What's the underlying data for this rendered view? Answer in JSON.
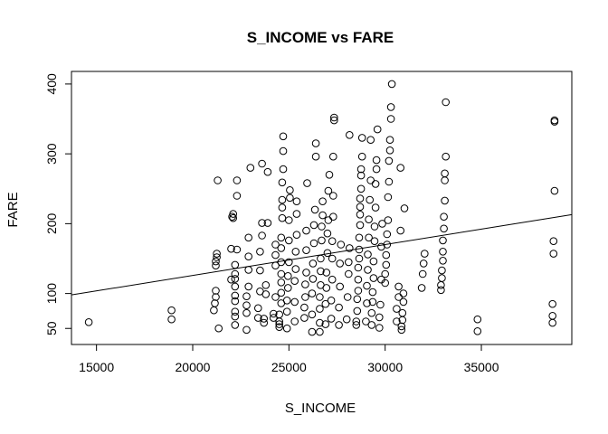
{
  "chart_data": {
    "type": "scatter",
    "title": "S_INCOME vs FARE",
    "xlabel": "S_INCOME",
    "ylabel": "FARE",
    "xlim": [
      13700,
      39700
    ],
    "ylim": [
      27,
      418
    ],
    "x_ticks": [
      15000,
      20000,
      25000,
      30000,
      35000
    ],
    "y_ticks": [
      50,
      100,
      200,
      300,
      400
    ],
    "grid": false,
    "regression_line": {
      "x": [
        13700,
        39700
      ],
      "y": [
        98,
        213
      ]
    },
    "point_style": "open-circle",
    "points": [
      [
        14600,
        59
      ],
      [
        18900,
        63
      ],
      [
        18900,
        76
      ],
      [
        21100,
        76
      ],
      [
        21150,
        86
      ],
      [
        21200,
        95
      ],
      [
        21200,
        104
      ],
      [
        21200,
        140
      ],
      [
        21200,
        146
      ],
      [
        21250,
        152
      ],
      [
        21250,
        157
      ],
      [
        21300,
        262
      ],
      [
        21350,
        50
      ],
      [
        22000,
        120
      ],
      [
        22000,
        164
      ],
      [
        22050,
        210
      ],
      [
        22100,
        214
      ],
      [
        22100,
        208
      ],
      [
        22200,
        55
      ],
      [
        22200,
        67
      ],
      [
        22200,
        74
      ],
      [
        22200,
        89
      ],
      [
        22200,
        97
      ],
      [
        22200,
        110
      ],
      [
        22200,
        121
      ],
      [
        22200,
        128
      ],
      [
        22200,
        141
      ],
      [
        22300,
        163
      ],
      [
        22300,
        240
      ],
      [
        22300,
        262
      ],
      [
        22800,
        48
      ],
      [
        22800,
        72
      ],
      [
        22800,
        83
      ],
      [
        22800,
        96
      ],
      [
        22900,
        110
      ],
      [
        22900,
        134
      ],
      [
        22900,
        153
      ],
      [
        22900,
        180
      ],
      [
        23000,
        280
      ],
      [
        23400,
        65
      ],
      [
        23400,
        79
      ],
      [
        23500,
        103
      ],
      [
        23500,
        133
      ],
      [
        23500,
        160
      ],
      [
        23600,
        183
      ],
      [
        23600,
        201
      ],
      [
        23600,
        286
      ],
      [
        23700,
        58
      ],
      [
        23700,
        64
      ],
      [
        23800,
        99
      ],
      [
        23800,
        112
      ],
      [
        23900,
        201
      ],
      [
        23900,
        274
      ],
      [
        24200,
        65
      ],
      [
        24200,
        71
      ],
      [
        24300,
        95
      ],
      [
        24300,
        140
      ],
      [
        24300,
        155
      ],
      [
        24300,
        170
      ],
      [
        24500,
        52
      ],
      [
        24500,
        56
      ],
      [
        24500,
        60
      ],
      [
        24500,
        70
      ],
      [
        24600,
        86
      ],
      [
        24600,
        101
      ],
      [
        24600,
        116
      ],
      [
        24600,
        128
      ],
      [
        24600,
        145
      ],
      [
        24600,
        165
      ],
      [
        24600,
        180
      ],
      [
        24650,
        208
      ],
      [
        24650,
        223
      ],
      [
        24650,
        234
      ],
      [
        24650,
        259
      ],
      [
        24700,
        278
      ],
      [
        24700,
        304
      ],
      [
        24700,
        325
      ],
      [
        24900,
        50
      ],
      [
        24900,
        74
      ],
      [
        24900,
        90
      ],
      [
        24950,
        108
      ],
      [
        24950,
        125
      ],
      [
        25000,
        145
      ],
      [
        25000,
        176
      ],
      [
        25000,
        205
      ],
      [
        25050,
        237
      ],
      [
        25050,
        248
      ],
      [
        25300,
        60
      ],
      [
        25300,
        88
      ],
      [
        25300,
        118
      ],
      [
        25350,
        135
      ],
      [
        25350,
        160
      ],
      [
        25400,
        184
      ],
      [
        25400,
        214
      ],
      [
        25400,
        232
      ],
      [
        25800,
        65
      ],
      [
        25800,
        80
      ],
      [
        25850,
        95
      ],
      [
        25850,
        113
      ],
      [
        25900,
        130
      ],
      [
        25900,
        162
      ],
      [
        25900,
        190
      ],
      [
        25950,
        258
      ],
      [
        26200,
        45
      ],
      [
        26200,
        70
      ],
      [
        26200,
        100
      ],
      [
        26250,
        121
      ],
      [
        26250,
        143
      ],
      [
        26300,
        172
      ],
      [
        26300,
        198
      ],
      [
        26350,
        220
      ],
      [
        26400,
        296
      ],
      [
        26400,
        315
      ],
      [
        26600,
        45
      ],
      [
        26600,
        58
      ],
      [
        26600,
        78
      ],
      [
        26600,
        95
      ],
      [
        26650,
        112
      ],
      [
        26650,
        132
      ],
      [
        26650,
        150
      ],
      [
        26700,
        176
      ],
      [
        26700,
        196
      ],
      [
        26750,
        212
      ],
      [
        26750,
        232
      ],
      [
        26900,
        56
      ],
      [
        26900,
        85
      ],
      [
        26950,
        108
      ],
      [
        26950,
        130
      ],
      [
        27000,
        158
      ],
      [
        27000,
        186
      ],
      [
        27050,
        205
      ],
      [
        27050,
        247
      ],
      [
        27100,
        270
      ],
      [
        27200,
        64
      ],
      [
        27200,
        90
      ],
      [
        27250,
        120
      ],
      [
        27250,
        150
      ],
      [
        27250,
        175
      ],
      [
        27300,
        210
      ],
      [
        27300,
        240
      ],
      [
        27300,
        296
      ],
      [
        27350,
        348
      ],
      [
        27350,
        352
      ],
      [
        27600,
        55
      ],
      [
        27600,
        80
      ],
      [
        27650,
        110
      ],
      [
        27650,
        143
      ],
      [
        27700,
        170
      ],
      [
        28000,
        63
      ],
      [
        28050,
        95
      ],
      [
        28100,
        128
      ],
      [
        28100,
        145
      ],
      [
        28150,
        165
      ],
      [
        28150,
        327
      ],
      [
        28500,
        55
      ],
      [
        28500,
        60
      ],
      [
        28550,
        75
      ],
      [
        28550,
        92
      ],
      [
        28600,
        104
      ],
      [
        28600,
        120
      ],
      [
        28600,
        137
      ],
      [
        28650,
        150
      ],
      [
        28650,
        163
      ],
      [
        28650,
        180
      ],
      [
        28700,
        198
      ],
      [
        28700,
        213
      ],
      [
        28700,
        224
      ],
      [
        28700,
        236
      ],
      [
        28750,
        250
      ],
      [
        28750,
        269
      ],
      [
        28750,
        278
      ],
      [
        28800,
        296
      ],
      [
        28800,
        323
      ],
      [
        29000,
        60
      ],
      [
        29050,
        86
      ],
      [
        29050,
        111
      ],
      [
        29100,
        134
      ],
      [
        29100,
        156
      ],
      [
        29150,
        180
      ],
      [
        29150,
        206
      ],
      [
        29200,
        234
      ],
      [
        29250,
        262
      ],
      [
        29250,
        320
      ],
      [
        29300,
        55
      ],
      [
        29300,
        72
      ],
      [
        29350,
        88
      ],
      [
        29350,
        102
      ],
      [
        29400,
        122
      ],
      [
        29400,
        146
      ],
      [
        29450,
        175
      ],
      [
        29450,
        196
      ],
      [
        29500,
        223
      ],
      [
        29500,
        257
      ],
      [
        29550,
        278
      ],
      [
        29550,
        291
      ],
      [
        29600,
        335
      ],
      [
        29700,
        51
      ],
      [
        29700,
        66
      ],
      [
        29750,
        84
      ],
      [
        29800,
        120
      ],
      [
        29800,
        167
      ],
      [
        29850,
        200
      ],
      [
        30000,
        115
      ],
      [
        30000,
        128
      ],
      [
        30050,
        141
      ],
      [
        30050,
        155
      ],
      [
        30100,
        170
      ],
      [
        30100,
        185
      ],
      [
        30150,
        205
      ],
      [
        30150,
        238
      ],
      [
        30200,
        260
      ],
      [
        30200,
        290
      ],
      [
        30250,
        305
      ],
      [
        30250,
        320
      ],
      [
        30300,
        350
      ],
      [
        30300,
        367
      ],
      [
        30350,
        400
      ],
      [
        30600,
        60
      ],
      [
        30600,
        78
      ],
      [
        30700,
        95
      ],
      [
        30700,
        110
      ],
      [
        30800,
        190
      ],
      [
        30800,
        280
      ],
      [
        30850,
        48
      ],
      [
        30850,
        53
      ],
      [
        30900,
        62
      ],
      [
        30900,
        72
      ],
      [
        30950,
        88
      ],
      [
        30950,
        100
      ],
      [
        31000,
        222
      ],
      [
        31900,
        108
      ],
      [
        31950,
        128
      ],
      [
        32000,
        143
      ],
      [
        32050,
        157
      ],
      [
        32900,
        105
      ],
      [
        32900,
        112
      ],
      [
        32950,
        122
      ],
      [
        32950,
        133
      ],
      [
        33000,
        147
      ],
      [
        33000,
        160
      ],
      [
        33000,
        176
      ],
      [
        33050,
        193
      ],
      [
        33050,
        210
      ],
      [
        33100,
        233
      ],
      [
        33100,
        262
      ],
      [
        33100,
        272
      ],
      [
        33150,
        296
      ],
      [
        33150,
        374
      ],
      [
        34800,
        46
      ],
      [
        34800,
        63
      ],
      [
        38700,
        58
      ],
      [
        38700,
        68
      ],
      [
        38700,
        85
      ],
      [
        38750,
        157
      ],
      [
        38750,
        175
      ],
      [
        38800,
        247
      ],
      [
        38800,
        346
      ],
      [
        38800,
        348
      ]
    ]
  }
}
